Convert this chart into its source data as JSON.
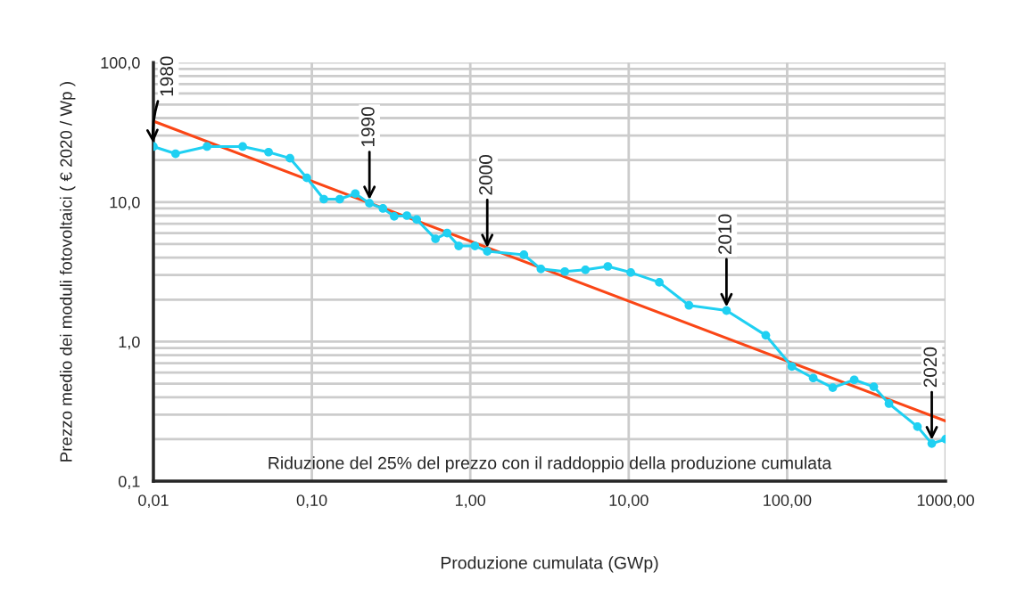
{
  "chart_data": {
    "type": "line",
    "xlabel": "Produzione cumulata (GWp)",
    "ylabel": "Prezzo medio dei moduli fotovoltaici ( € 2020 / Wp )",
    "log": "xy",
    "grid": true,
    "legend": false,
    "xlim": [
      0.01,
      1000
    ],
    "ylim": [
      0.1,
      100
    ],
    "xticks": [
      {
        "value": 0.01,
        "label": "0,01"
      },
      {
        "value": 0.1,
        "label": "0,10"
      },
      {
        "value": 1,
        "label": "1,00"
      },
      {
        "value": 10,
        "label": "10,00"
      },
      {
        "value": 100,
        "label": "100,00"
      },
      {
        "value": 1000,
        "label": "1000,00"
      }
    ],
    "yticks": [
      {
        "value": 0.1,
        "label": "0,1"
      },
      {
        "value": 1,
        "label": "1,0"
      },
      {
        "value": 10,
        "label": "10,0"
      },
      {
        "value": 100,
        "label": "100,0"
      }
    ],
    "series": [
      {
        "color": "#1fd0f2",
        "marker": "circle",
        "x": [
          0.01,
          0.0138,
          0.0218,
          0.0366,
          0.0533,
          0.0728,
          0.093,
          0.119,
          0.15,
          0.188,
          0.231,
          0.281,
          0.331,
          0.398,
          0.459,
          0.603,
          0.714,
          0.845,
          1.07,
          1.28,
          2.18,
          2.79,
          3.95,
          5.33,
          7.38,
          10.3,
          15.6,
          24.0,
          41.4,
          73.3,
          107,
          146,
          194,
          265,
          352,
          439,
          664,
          818,
          1000
        ],
        "values": [
          25,
          22.2,
          25,
          25,
          22.8,
          20.6,
          14.9,
          10.5,
          10.5,
          11.5,
          9.8,
          9.0,
          7.9,
          8.0,
          7.5,
          5.45,
          6.0,
          4.85,
          4.85,
          4.44,
          4.19,
          3.32,
          3.18,
          3.27,
          3.46,
          3.13,
          2.66,
          1.82,
          1.67,
          1.11,
          0.664,
          0.549,
          0.468,
          0.533,
          0.475,
          0.36,
          0.246,
          0.186,
          0.2
        ]
      },
      {
        "color": "#fa4616",
        "marker": "none",
        "x": [
          0.01,
          1000
        ],
        "values": [
          38,
          0.27
        ]
      }
    ],
    "annotations": [
      {
        "text": "1980",
        "x": 0.01,
        "y": 25
      },
      {
        "text": "1990",
        "x": 0.231,
        "y": 9.8
      },
      {
        "text": "2000",
        "x": 1.28,
        "y": 4.44
      },
      {
        "text": "2010",
        "x": 41.4,
        "y": 1.67
      },
      {
        "text": "2020",
        "x": 818,
        "y": 0.186
      },
      "Riduzione del 25% del prezzo con il raddoppio della produzione cumulata"
    ]
  }
}
